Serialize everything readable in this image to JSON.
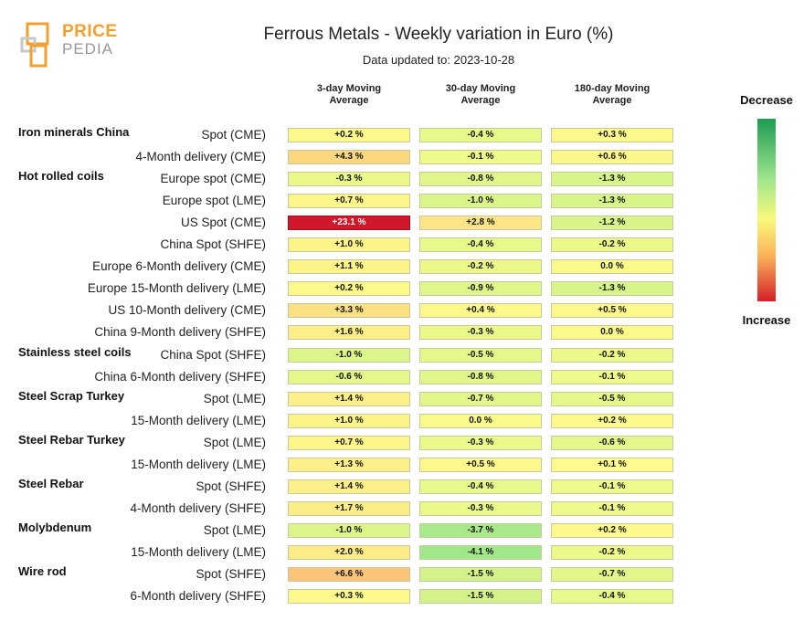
{
  "logo": {
    "line1": "PRICE",
    "line2": "PEDIA"
  },
  "title": "Ferrous Metals - Weekly variation in Euro (%)",
  "subtitle": "Data updated to: 2023-10-28",
  "legend": {
    "top": "Decrease",
    "bottom": "Increase"
  },
  "chart_data": {
    "type": "table",
    "title": "Ferrous Metals - Weekly variation in Euro (%)",
    "columns": [
      "3-day Moving Average",
      "30-day Moving Average",
      "180-day Moving Average"
    ],
    "rows": [
      {
        "group": "Iron minerals China",
        "label": "Spot (CME)",
        "values": [
          "+0.2 %",
          "-0.4 %",
          "+0.3 %"
        ]
      },
      {
        "group": "",
        "label": "4-Month delivery (CME)",
        "values": [
          "+4.3 %",
          "-0.1 %",
          "+0.6 %"
        ]
      },
      {
        "group": "Hot rolled coils",
        "label": "Europe spot (CME)",
        "values": [
          "-0.3 %",
          "-0.8 %",
          "-1.3 %"
        ]
      },
      {
        "group": "",
        "label": "Europe spot (LME)",
        "values": [
          "+0.7 %",
          "-1.0 %",
          "-1.3 %"
        ]
      },
      {
        "group": "",
        "label": "US Spot (CME)",
        "values": [
          "+23.1 %",
          "+2.8 %",
          "-1.2 %"
        ]
      },
      {
        "group": "",
        "label": "China Spot (SHFE)",
        "values": [
          "+1.0 %",
          "-0.4 %",
          "-0.2 %"
        ]
      },
      {
        "group": "",
        "label": "Europe 6-Month delivery (CME)",
        "values": [
          "+1.1 %",
          "-0.2 %",
          "0.0 %"
        ]
      },
      {
        "group": "",
        "label": "Europe 15-Month delivery (LME)",
        "values": [
          "+0.2 %",
          "-0.9 %",
          "-1.3 %"
        ]
      },
      {
        "group": "",
        "label": "US 10-Month delivery (CME)",
        "values": [
          "+3.3 %",
          "+0.4 %",
          "+0.5 %"
        ]
      },
      {
        "group": "",
        "label": "China 9-Month delivery (SHFE)",
        "values": [
          "+1.6 %",
          "-0.3 %",
          "0.0 %"
        ]
      },
      {
        "group": "Stainless steel coils",
        "label": "China Spot (SHFE)",
        "values": [
          "-1.0 %",
          "-0.5 %",
          "-0.2 %"
        ]
      },
      {
        "group": "",
        "label": "China 6-Month delivery (SHFE)",
        "values": [
          "-0.6 %",
          "-0.8 %",
          "-0.1 %"
        ]
      },
      {
        "group": "Steel Scrap Turkey",
        "label": "Spot (LME)",
        "values": [
          "+1.4 %",
          "-0.7 %",
          "-0.5 %"
        ]
      },
      {
        "group": "",
        "label": "15-Month delivery (LME)",
        "values": [
          "+1.0 %",
          "0.0 %",
          "+0.2 %"
        ]
      },
      {
        "group": "Steel Rebar Turkey",
        "label": "Spot (LME)",
        "values": [
          "+0.7 %",
          "-0.3 %",
          "-0.6 %"
        ]
      },
      {
        "group": "",
        "label": "15-Month delivery (LME)",
        "values": [
          "+1.3 %",
          "+0.5 %",
          "+0.1 %"
        ]
      },
      {
        "group": "Steel Rebar",
        "label": "Spot (SHFE)",
        "values": [
          "+1.4 %",
          "-0.4 %",
          "-0.1 %"
        ]
      },
      {
        "group": "",
        "label": "4-Month delivery (SHFE)",
        "values": [
          "+1.7 %",
          "-0.3 %",
          "-0.1 %"
        ]
      },
      {
        "group": "Molybdenum",
        "label": "Spot (LME)",
        "values": [
          "-1.0 %",
          "-3.7 %",
          "+0.2 %"
        ]
      },
      {
        "group": "",
        "label": "15-Month delivery (LME)",
        "values": [
          "+2.0 %",
          "-4.1 %",
          "-0.2 %"
        ]
      },
      {
        "group": "Wire rod",
        "label": "Spot (SHFE)",
        "values": [
          "+6.6 %",
          "-1.5 %",
          "-0.7 %"
        ]
      },
      {
        "group": "",
        "label": "6-Month delivery (SHFE)",
        "values": [
          "+0.3 %",
          "-1.5 %",
          "-0.4 %"
        ]
      }
    ],
    "colors": {
      "strong_increase": "#d0202a",
      "increase": "#fdc87a",
      "neutral": "#fbf98a",
      "decrease": "#c6f08e",
      "strong_decrease": "#1e9c52"
    }
  }
}
